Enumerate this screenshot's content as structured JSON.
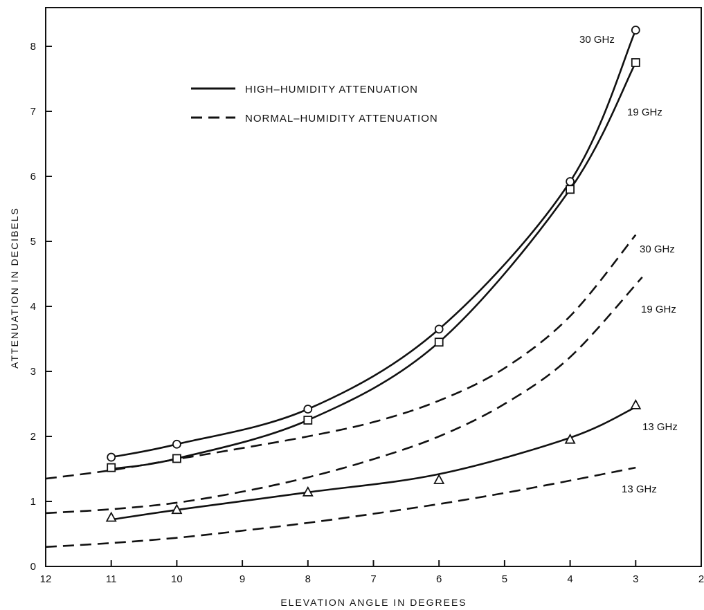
{
  "chart_data": {
    "type": "line",
    "xlabel": "ELEVATION ANGLE IN DEGREES",
    "ylabel": "ATTENUATION IN DECIBELS",
    "xlim": [
      12,
      2
    ],
    "ylim": [
      0,
      8.5
    ],
    "x_reversed": true,
    "x_ticks": [
      12,
      11,
      10,
      9,
      8,
      7,
      6,
      5,
      4,
      3,
      2
    ],
    "y_ticks": [
      0,
      1,
      2,
      3,
      4,
      5,
      6,
      7,
      8
    ],
    "grid": false,
    "legend_position": "top-left",
    "legend": [
      {
        "label": "HIGH–HUMIDITY ATTENUATION",
        "style": "solid"
      },
      {
        "label": "NORMAL–HUMIDITY ATTENUATION",
        "style": "dashed"
      }
    ],
    "series": [
      {
        "name": "30 GHz",
        "style": "solid",
        "marker": "circle",
        "points": [
          [
            11,
            1.68
          ],
          [
            10,
            1.88
          ],
          [
            8,
            2.42
          ],
          [
            6,
            3.65
          ],
          [
            4,
            5.92
          ],
          [
            3,
            8.25
          ]
        ],
        "markers": [
          [
            11,
            1.68
          ],
          [
            10,
            1.88
          ],
          [
            8,
            2.42
          ],
          [
            6,
            3.65
          ],
          [
            4,
            5.92
          ],
          [
            3,
            8.25
          ]
        ]
      },
      {
        "name": "19 GHz",
        "style": "solid",
        "marker": "square",
        "points": [
          [
            11,
            1.5
          ],
          [
            10,
            1.66
          ],
          [
            8,
            2.25
          ],
          [
            6,
            3.45
          ],
          [
            4,
            5.8
          ],
          [
            3,
            7.75
          ]
        ],
        "markers": [
          [
            11,
            1.52
          ],
          [
            10,
            1.66
          ],
          [
            8,
            2.25
          ],
          [
            6,
            3.45
          ],
          [
            4,
            5.8
          ],
          [
            3,
            7.75
          ]
        ]
      },
      {
        "name": "13 GHz",
        "style": "solid",
        "marker": "triangle",
        "points": [
          [
            11,
            0.72
          ],
          [
            10,
            0.87
          ],
          [
            8,
            1.14
          ],
          [
            6,
            1.42
          ],
          [
            4,
            1.98
          ],
          [
            3,
            2.45
          ]
        ],
        "markers": [
          [
            11,
            0.75
          ],
          [
            10,
            0.87
          ],
          [
            8,
            1.14
          ],
          [
            6,
            1.33
          ],
          [
            4,
            1.95
          ],
          [
            3,
            2.48
          ]
        ]
      },
      {
        "name": "30 GHz",
        "style": "dashed",
        "marker": "none",
        "points": [
          [
            12,
            1.35
          ],
          [
            11,
            1.48
          ],
          [
            10,
            1.65
          ],
          [
            9,
            1.82
          ],
          [
            8,
            2.0
          ],
          [
            7,
            2.22
          ],
          [
            6,
            2.55
          ],
          [
            5,
            3.05
          ],
          [
            4,
            3.85
          ],
          [
            3,
            5.1
          ]
        ],
        "markers": []
      },
      {
        "name": "19 GHz",
        "style": "dashed",
        "marker": "none",
        "points": [
          [
            12,
            0.82
          ],
          [
            11,
            0.88
          ],
          [
            10,
            0.98
          ],
          [
            9,
            1.15
          ],
          [
            8,
            1.37
          ],
          [
            7,
            1.65
          ],
          [
            6,
            2.0
          ],
          [
            5,
            2.5
          ],
          [
            4,
            3.22
          ],
          [
            2.9,
            4.45
          ]
        ],
        "markers": []
      },
      {
        "name": "13 GHz",
        "style": "dashed",
        "marker": "none",
        "points": [
          [
            12,
            0.3
          ],
          [
            11,
            0.36
          ],
          [
            10,
            0.44
          ],
          [
            9,
            0.55
          ],
          [
            8,
            0.67
          ],
          [
            7,
            0.81
          ],
          [
            6,
            0.96
          ],
          [
            5,
            1.13
          ],
          [
            4,
            1.32
          ],
          [
            3,
            1.52
          ]
        ],
        "markers": []
      }
    ]
  }
}
